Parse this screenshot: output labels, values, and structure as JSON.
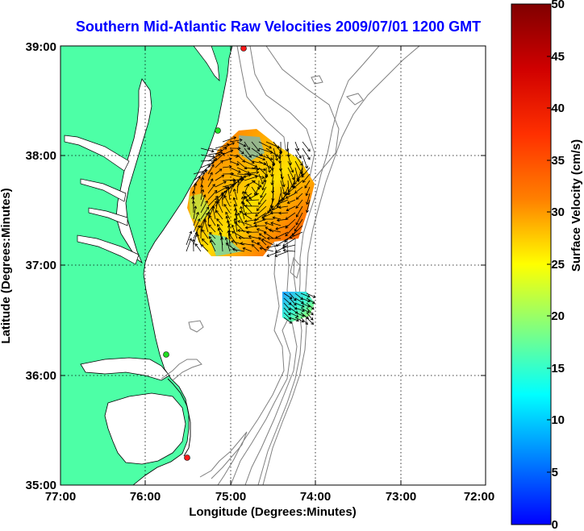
{
  "title": "Southern Mid-Atlantic Raw Velocities 2009/07/01 1200 GMT",
  "axes": {
    "xlabel": "Longitude (Degrees:Minutes)",
    "ylabel": "Latitude (Degrees:Minutes)",
    "xticks": [
      "77:00",
      "76:00",
      "75:00",
      "74:00",
      "73:00",
      "72:00"
    ],
    "yticks": [
      "39:00",
      "38:00",
      "37:00",
      "36:00",
      "35:00"
    ],
    "xlim_deg_west": [
      77,
      72
    ],
    "ylim_deg_north": [
      35,
      39
    ],
    "grid": "dotted"
  },
  "colorbar": {
    "label": "Surface Velocity (cm/s)",
    "ticks": [
      "50",
      "45",
      "40",
      "35",
      "30",
      "25",
      "20",
      "15",
      "10",
      "5",
      "0"
    ],
    "range": [
      0,
      50
    ],
    "colormap": "jet"
  },
  "colors": {
    "title": "#0000ff",
    "land": "#4dffa6",
    "water": "#ffffff",
    "coastline": "#000000",
    "bathymetry": "#808080",
    "station_green": "#22dd22",
    "station_red": "#ff1a1a"
  },
  "stations": [
    {
      "color": "red",
      "lon": 74.87,
      "lat": 38.97
    },
    {
      "color": "green",
      "lon": 75.15,
      "lat": 38.23
    },
    {
      "color": "green",
      "lon": 75.72,
      "lat": 36.19
    },
    {
      "color": "red",
      "lon": 75.47,
      "lat": 35.23
    }
  ]
}
